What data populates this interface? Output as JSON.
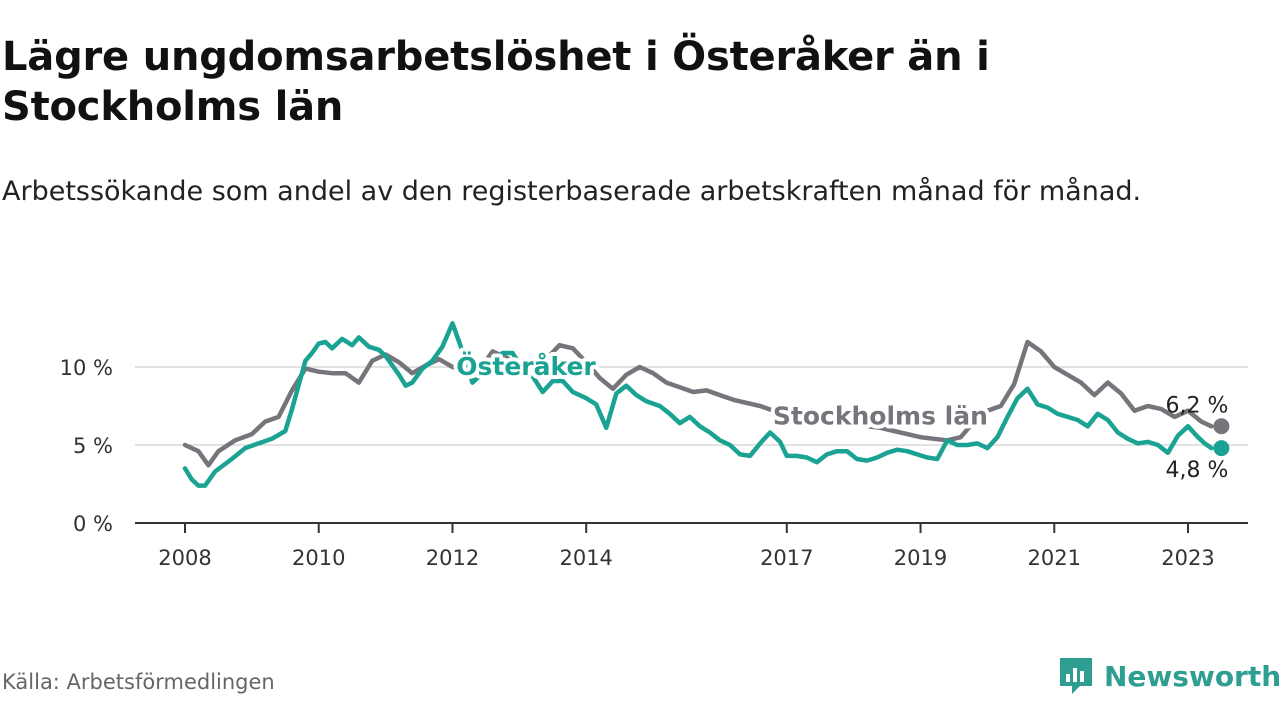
{
  "title": "Lägre ungdomsarbetslöshet i Österåker än i Stockholms län",
  "subtitle": "Arbetssökande som andel av den registerbaserade arbetskraften månad för månad.",
  "source": "Källa: Arbetsförmedlingen",
  "brand": "Newsworthy",
  "colors": {
    "osteraker": "#1aa393",
    "stockholm": "#76757b",
    "axis": "#333333",
    "grid": "#d9d9d9",
    "brand": "#2e9e91"
  },
  "chart_data": {
    "type": "line",
    "title": "Lägre ungdomsarbetslöshet i Österåker än i Stockholms län",
    "xlabel": "",
    "ylabel": "",
    "xlim": [
      2008,
      2024.5
    ],
    "ylim": [
      0,
      13
    ],
    "y_ticks": [
      0,
      5,
      10
    ],
    "y_tick_labels": [
      "0 %",
      "5 %",
      "10 %"
    ],
    "x_ticks": [
      2008,
      2010,
      2012,
      2014,
      2017,
      2019,
      2021,
      2023
    ],
    "x_tick_labels": [
      "2008",
      "2010",
      "2012",
      "2014",
      "2017",
      "2019",
      "2021",
      "2023"
    ],
    "grid": true,
    "series": [
      {
        "name": "Stockholms län",
        "end_label": "6,2 %",
        "points": [
          [
            2008.0,
            5.0
          ],
          [
            2008.2,
            4.6
          ],
          [
            2008.35,
            3.7
          ],
          [
            2008.5,
            4.6
          ],
          [
            2008.75,
            5.3
          ],
          [
            2009.0,
            5.7
          ],
          [
            2009.2,
            6.5
          ],
          [
            2009.4,
            6.8
          ],
          [
            2009.6,
            8.5
          ],
          [
            2009.8,
            9.9
          ],
          [
            2010.0,
            9.7
          ],
          [
            2010.2,
            9.6
          ],
          [
            2010.4,
            9.6
          ],
          [
            2010.6,
            9.0
          ],
          [
            2010.8,
            10.4
          ],
          [
            2011.0,
            10.8
          ],
          [
            2011.2,
            10.3
          ],
          [
            2011.4,
            9.6
          ],
          [
            2011.6,
            10.1
          ],
          [
            2011.8,
            10.5
          ],
          [
            2012.0,
            10.0
          ],
          [
            2012.2,
            9.6
          ],
          [
            2012.4,
            9.8
          ],
          [
            2012.6,
            11.0
          ],
          [
            2012.8,
            10.6
          ],
          [
            2013.0,
            10.2
          ],
          [
            2013.2,
            9.9
          ],
          [
            2013.4,
            10.5
          ],
          [
            2013.6,
            11.4
          ],
          [
            2013.8,
            11.2
          ],
          [
            2014.0,
            10.3
          ],
          [
            2014.2,
            9.3
          ],
          [
            2014.4,
            8.6
          ],
          [
            2014.6,
            9.5
          ],
          [
            2014.8,
            10.0
          ],
          [
            2015.0,
            9.6
          ],
          [
            2015.2,
            9.0
          ],
          [
            2015.4,
            8.7
          ],
          [
            2015.6,
            8.4
          ],
          [
            2015.8,
            8.5
          ],
          [
            2016.0,
            8.2
          ],
          [
            2016.2,
            7.9
          ],
          [
            2016.4,
            7.7
          ],
          [
            2016.6,
            7.5
          ],
          [
            2016.8,
            7.2
          ],
          [
            2017.0,
            6.9
          ],
          [
            2017.2,
            6.9
          ],
          [
            2017.4,
            6.6
          ],
          [
            2017.6,
            6.6
          ],
          [
            2017.8,
            6.4
          ],
          [
            2018.0,
            6.3
          ],
          [
            2018.2,
            6.2
          ],
          [
            2018.4,
            6.1
          ],
          [
            2018.6,
            5.9
          ],
          [
            2018.8,
            5.7
          ],
          [
            2019.0,
            5.5
          ],
          [
            2019.2,
            5.4
          ],
          [
            2019.4,
            5.3
          ],
          [
            2019.6,
            5.5
          ],
          [
            2019.8,
            6.5
          ],
          [
            2020.0,
            7.2
          ],
          [
            2020.2,
            7.5
          ],
          [
            2020.4,
            8.9
          ],
          [
            2020.6,
            11.6
          ],
          [
            2020.8,
            11.0
          ],
          [
            2021.0,
            10.0
          ],
          [
            2021.2,
            9.5
          ],
          [
            2021.4,
            9.0
          ],
          [
            2021.6,
            8.2
          ],
          [
            2021.8,
            9.0
          ],
          [
            2022.0,
            8.3
          ],
          [
            2022.2,
            7.2
          ],
          [
            2022.4,
            7.5
          ],
          [
            2022.6,
            7.3
          ],
          [
            2022.8,
            6.8
          ],
          [
            2023.0,
            7.2
          ],
          [
            2023.2,
            6.5
          ],
          [
            2023.35,
            6.2
          ]
        ]
      },
      {
        "name": "Österåker",
        "end_label": "4,8 %",
        "points": [
          [
            2008.0,
            3.5
          ],
          [
            2008.1,
            2.8
          ],
          [
            2008.2,
            2.4
          ],
          [
            2008.3,
            2.4
          ],
          [
            2008.45,
            3.3
          ],
          [
            2008.7,
            4.1
          ],
          [
            2008.9,
            4.8
          ],
          [
            2009.1,
            5.1
          ],
          [
            2009.3,
            5.4
          ],
          [
            2009.5,
            5.9
          ],
          [
            2009.6,
            7.3
          ],
          [
            2009.8,
            10.4
          ],
          [
            2009.9,
            10.9
          ],
          [
            2010.0,
            11.5
          ],
          [
            2010.1,
            11.6
          ],
          [
            2010.2,
            11.2
          ],
          [
            2010.35,
            11.8
          ],
          [
            2010.5,
            11.4
          ],
          [
            2010.6,
            11.9
          ],
          [
            2010.75,
            11.3
          ],
          [
            2010.9,
            11.1
          ],
          [
            2011.0,
            10.7
          ],
          [
            2011.2,
            9.5
          ],
          [
            2011.3,
            8.8
          ],
          [
            2011.4,
            9.0
          ],
          [
            2011.55,
            9.9
          ],
          [
            2011.7,
            10.4
          ],
          [
            2011.85,
            11.3
          ],
          [
            2012.0,
            12.8
          ],
          [
            2012.15,
            11.0
          ],
          [
            2012.3,
            9.0
          ],
          [
            2012.45,
            9.6
          ],
          [
            2012.6,
            10.4
          ],
          [
            2012.75,
            10.9
          ],
          [
            2012.9,
            10.9
          ],
          [
            2013.0,
            10.2
          ],
          [
            2013.2,
            9.4
          ],
          [
            2013.35,
            8.4
          ],
          [
            2013.5,
            9.1
          ],
          [
            2013.65,
            9.1
          ],
          [
            2013.8,
            8.4
          ],
          [
            2014.0,
            8.0
          ],
          [
            2014.15,
            7.6
          ],
          [
            2014.3,
            6.1
          ],
          [
            2014.45,
            8.3
          ],
          [
            2014.6,
            8.8
          ],
          [
            2014.75,
            8.2
          ],
          [
            2014.9,
            7.8
          ],
          [
            2015.1,
            7.5
          ],
          [
            2015.25,
            7.0
          ],
          [
            2015.4,
            6.4
          ],
          [
            2015.55,
            6.8
          ],
          [
            2015.7,
            6.2
          ],
          [
            2015.85,
            5.8
          ],
          [
            2016.0,
            5.3
          ],
          [
            2016.15,
            5.0
          ],
          [
            2016.3,
            4.4
          ],
          [
            2016.45,
            4.3
          ],
          [
            2016.6,
            5.1
          ],
          [
            2016.75,
            5.8
          ],
          [
            2016.9,
            5.2
          ],
          [
            2017.0,
            4.3
          ],
          [
            2017.15,
            4.3
          ],
          [
            2017.3,
            4.2
          ],
          [
            2017.45,
            3.9
          ],
          [
            2017.6,
            4.4
          ],
          [
            2017.75,
            4.6
          ],
          [
            2017.9,
            4.6
          ],
          [
            2018.05,
            4.1
          ],
          [
            2018.2,
            4.0
          ],
          [
            2018.35,
            4.2
          ],
          [
            2018.5,
            4.5
          ],
          [
            2018.65,
            4.7
          ],
          [
            2018.8,
            4.6
          ],
          [
            2018.95,
            4.4
          ],
          [
            2019.1,
            4.2
          ],
          [
            2019.25,
            4.1
          ],
          [
            2019.4,
            5.3
          ],
          [
            2019.55,
            5.0
          ],
          [
            2019.7,
            5.0
          ],
          [
            2019.85,
            5.1
          ],
          [
            2020.0,
            4.8
          ],
          [
            2020.15,
            5.5
          ],
          [
            2020.3,
            6.8
          ],
          [
            2020.45,
            8.0
          ],
          [
            2020.6,
            8.6
          ],
          [
            2020.75,
            7.6
          ],
          [
            2020.9,
            7.4
          ],
          [
            2021.05,
            7.0
          ],
          [
            2021.2,
            6.8
          ],
          [
            2021.35,
            6.6
          ],
          [
            2021.5,
            6.2
          ],
          [
            2021.65,
            7.0
          ],
          [
            2021.8,
            6.6
          ],
          [
            2021.95,
            5.8
          ],
          [
            2022.1,
            5.4
          ],
          [
            2022.25,
            5.1
          ],
          [
            2022.4,
            5.2
          ],
          [
            2022.55,
            5.0
          ],
          [
            2022.7,
            4.5
          ],
          [
            2022.85,
            5.6
          ],
          [
            2023.0,
            6.2
          ],
          [
            2023.15,
            5.5
          ],
          [
            2023.25,
            5.1
          ],
          [
            2023.35,
            4.8
          ]
        ]
      }
    ],
    "annotations": [
      {
        "text": "Österåker",
        "series": "Österåker",
        "x": 2013.1,
        "y": 9.5
      },
      {
        "text": "Stockholms län",
        "series": "Stockholms län",
        "x": 2018.4,
        "y": 6.3
      }
    ]
  }
}
